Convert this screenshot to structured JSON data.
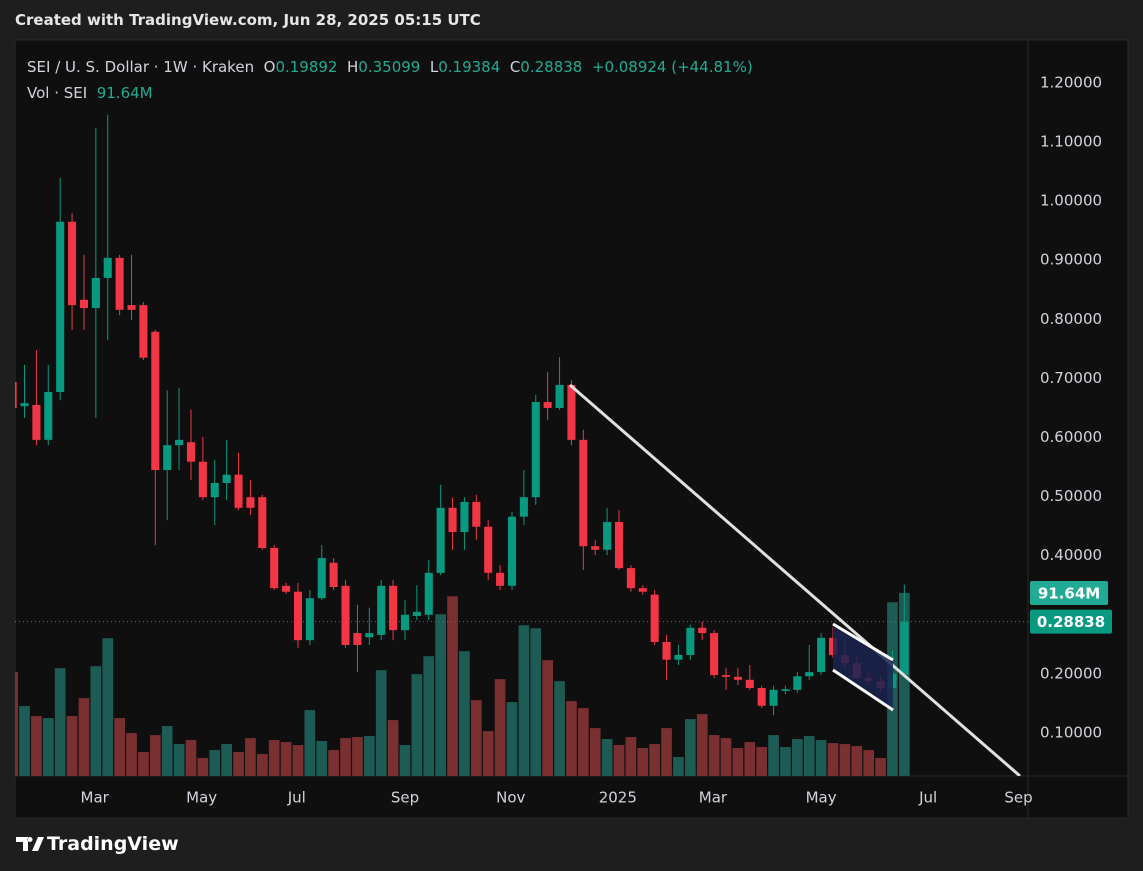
{
  "header": "Created with TradingView.com, Jun 28, 2025 05:15 UTC",
  "footer": "TradingView",
  "chart_data": {
    "type": "candlestick",
    "title": "SEI / U. S. Dollar · 1W · Kraken",
    "ohlc_labels": [
      "O",
      "H",
      "L",
      "C"
    ],
    "change": "+0.08924 (+44.81%)",
    "volume_title": "Vol · SEI",
    "volume_label": "91.64M",
    "up_color": "#089981",
    "down_color": "#f23645",
    "volume_up_color": "#1d5c55",
    "volume_down_color": "#7a2f31",
    "grid": true,
    "xlim": [
      0.2,
      85.4
    ],
    "xticks": [
      {
        "value": 6.9,
        "label": "Mar"
      },
      {
        "value": 15.9,
        "label": "May"
      },
      {
        "value": 23.9,
        "label": "Jul"
      },
      {
        "value": 33.0,
        "label": "Sep"
      },
      {
        "value": 41.9,
        "label": "Nov"
      },
      {
        "value": 50.9,
        "label": "2025"
      },
      {
        "value": 58.9,
        "label": "Mar"
      },
      {
        "value": 68.0,
        "label": "May"
      },
      {
        "value": 77.0,
        "label": "Jul"
      },
      {
        "value": 84.6,
        "label": "Sep"
      }
    ],
    "ylim": [
      0.0272,
      1.2726
    ],
    "yticks": [
      {
        "value": 0.1,
        "label": "0.10000"
      },
      {
        "value": 0.2,
        "label": "0.20000"
      },
      {
        "value": 0.4,
        "label": "0.40000"
      },
      {
        "value": 0.5,
        "label": "0.50000"
      },
      {
        "value": 0.6,
        "label": "0.60000"
      },
      {
        "value": 0.7,
        "label": "0.70000"
      },
      {
        "value": 0.8,
        "label": "0.80000"
      },
      {
        "value": 0.9,
        "label": "0.90000"
      },
      {
        "value": 1.0,
        "label": "1.00000"
      },
      {
        "value": 1.1,
        "label": "1.10000"
      },
      {
        "value": 1.2,
        "label": "1.20000"
      }
    ],
    "y2lim": [
      0,
      368.6
    ],
    "open": [
      0.694,
      0.653,
      0.655,
      0.596,
      0.677,
      0.965,
      0.833,
      0.819,
      0.87,
      0.904,
      0.824,
      0.824,
      0.779,
      0.545,
      0.587,
      0.592,
      0.559,
      0.499,
      0.523,
      0.537,
      0.499,
      0.499,
      0.413,
      0.349,
      0.339,
      0.257,
      0.328,
      0.388,
      0.349,
      0.269,
      0.262,
      0.266,
      0.349,
      0.274,
      0.298,
      0.3,
      0.371,
      0.481,
      0.44,
      0.491,
      0.449,
      0.371,
      0.349,
      0.466,
      0.499,
      0.66,
      0.65,
      0.689,
      0.596,
      0.416,
      0.41,
      0.457,
      0.379,
      0.345,
      0.334,
      0.254,
      0.224,
      0.232,
      0.278,
      0.269,
      0.198,
      0.195,
      0.19,
      0.176,
      0.146,
      0.171,
      0.173,
      0.196,
      0.203,
      0.261,
      0.232,
      0.218,
      0.193,
      0.188,
      0.176,
      0.19892
    ],
    "high": [
      0.706,
      0.723,
      0.748,
      0.723,
      1.039,
      0.98,
      0.909,
      1.124,
      1.146,
      0.909,
      0.909,
      0.829,
      0.782,
      0.68,
      0.684,
      0.647,
      0.601,
      0.562,
      0.596,
      0.574,
      0.528,
      0.503,
      0.418,
      0.354,
      0.354,
      0.342,
      0.418,
      0.396,
      0.359,
      0.317,
      0.312,
      0.359,
      0.359,
      0.325,
      0.35,
      0.393,
      0.52,
      0.498,
      0.499,
      0.503,
      0.46,
      0.384,
      0.474,
      0.545,
      0.672,
      0.711,
      0.736,
      0.697,
      0.613,
      0.427,
      0.481,
      0.477,
      0.384,
      0.35,
      0.342,
      0.266,
      0.249,
      0.283,
      0.288,
      0.274,
      0.21,
      0.21,
      0.215,
      0.18,
      0.18,
      0.18,
      0.203,
      0.249,
      0.269,
      0.279,
      0.257,
      0.232,
      0.203,
      0.195,
      0.24,
      0.35099
    ],
    "low": [
      0.643,
      0.633,
      0.587,
      0.587,
      0.663,
      0.782,
      0.782,
      0.633,
      0.765,
      0.807,
      0.799,
      0.731,
      0.418,
      0.46,
      0.545,
      0.528,
      0.494,
      0.452,
      0.494,
      0.477,
      0.469,
      0.41,
      0.342,
      0.335,
      0.244,
      0.249,
      0.325,
      0.342,
      0.244,
      0.203,
      0.249,
      0.257,
      0.257,
      0.257,
      0.291,
      0.291,
      0.367,
      0.41,
      0.41,
      0.427,
      0.359,
      0.342,
      0.342,
      0.452,
      0.486,
      0.63,
      0.647,
      0.587,
      0.376,
      0.401,
      0.401,
      0.376,
      0.339,
      0.334,
      0.249,
      0.19,
      0.215,
      0.224,
      0.257,
      0.193,
      0.173,
      0.181,
      0.173,
      0.142,
      0.13,
      0.166,
      0.168,
      0.19,
      0.198,
      0.227,
      0.21,
      0.19,
      0.181,
      0.169,
      0.169,
      0.19384
    ],
    "close": [
      0.65,
      0.658,
      0.596,
      0.677,
      0.965,
      0.824,
      0.819,
      0.87,
      0.904,
      0.816,
      0.816,
      0.735,
      0.545,
      0.587,
      0.596,
      0.559,
      0.499,
      0.523,
      0.537,
      0.481,
      0.481,
      0.413,
      0.345,
      0.339,
      0.257,
      0.328,
      0.396,
      0.347,
      0.249,
      0.249,
      0.269,
      0.349,
      0.274,
      0.3,
      0.305,
      0.371,
      0.481,
      0.44,
      0.491,
      0.449,
      0.371,
      0.349,
      0.466,
      0.499,
      0.66,
      0.65,
      0.689,
      0.596,
      0.416,
      0.41,
      0.457,
      0.379,
      0.345,
      0.339,
      0.254,
      0.224,
      0.232,
      0.278,
      0.269,
      0.198,
      0.195,
      0.19,
      0.176,
      0.146,
      0.173,
      0.174,
      0.196,
      0.203,
      0.261,
      0.232,
      0.218,
      0.193,
      0.188,
      0.176,
      0.2,
      0.28838
    ],
    "volume": [
      52,
      35,
      30,
      29,
      54,
      30,
      39,
      55,
      69,
      29,
      21.5,
      12,
      20.5,
      25,
      16,
      18,
      9,
      13,
      16,
      12,
      19,
      11,
      18,
      17,
      15.5,
      33,
      17.5,
      13,
      19,
      19.5,
      20,
      53,
      28,
      15.5,
      51,
      60,
      81,
      90,
      62.5,
      38,
      22.5,
      48.5,
      37,
      75.5,
      74,
      58,
      47.5,
      37.5,
      34,
      24,
      18.5,
      15.5,
      19.5,
      14,
      16,
      24,
      9.5,
      28.5,
      31,
      20.5,
      19,
      14,
      17,
      14.5,
      20.5,
      14.5,
      18.5,
      20,
      18,
      16.5,
      16,
      15,
      13,
      9,
      87,
      91.64
    ]
  }
}
